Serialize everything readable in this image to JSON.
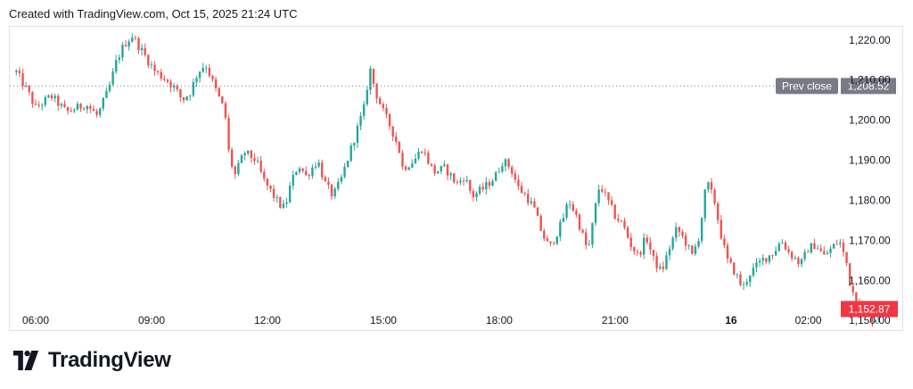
{
  "header": {
    "caption": "Created with TradingView.com, Oct 15, 2025 21:24 UTC"
  },
  "brand": {
    "name": "TradingView"
  },
  "colors": {
    "up": "#26a69a",
    "down": "#ef5350",
    "prev_close": "#787b86",
    "last_price": "#f23645"
  },
  "chart_data": {
    "type": "candlestick",
    "x_ticks": [
      {
        "label": "06:00",
        "hour": 6
      },
      {
        "label": "09:00",
        "hour": 9
      },
      {
        "label": "12:00",
        "hour": 12
      },
      {
        "label": "15:00",
        "hour": 15
      },
      {
        "label": "18:00",
        "hour": 18
      },
      {
        "label": "21:00",
        "hour": 21
      },
      {
        "label": "16",
        "hour": 24,
        "bold": true
      },
      {
        "label": "02:00",
        "hour": 26
      }
    ],
    "x_range_hours": [
      5.5,
      27.0
    ],
    "y_ticks": [
      {
        "label": "1,150.00",
        "value": 1150
      },
      {
        "label": "1,160.00",
        "value": 1160
      },
      {
        "label": "1,170.00",
        "value": 1170
      },
      {
        "label": "1,180.00",
        "value": 1180
      },
      {
        "label": "1,190.00",
        "value": 1190
      },
      {
        "label": "1,200.00",
        "value": 1200
      },
      {
        "label": "1,210.00",
        "value": 1210
      },
      {
        "label": "1,220.00",
        "value": 1220
      }
    ],
    "ylim": [
      1147.6,
      1223.3
    ],
    "prev_close": {
      "label": "Prev close",
      "value_label": "1,208.52",
      "value": 1208.52
    },
    "last_price": {
      "label": "1,152.87",
      "value": 1152.87
    },
    "path_points": [
      [
        5.5,
        1212
      ],
      [
        5.8,
        1207
      ],
      [
        6.0,
        1203
      ],
      [
        6.4,
        1206
      ],
      [
        6.8,
        1202
      ],
      [
        7.3,
        1204
      ],
      [
        7.6,
        1201
      ],
      [
        7.9,
        1208
      ],
      [
        8.1,
        1215
      ],
      [
        8.3,
        1219
      ],
      [
        8.5,
        1221
      ],
      [
        8.7,
        1218
      ],
      [
        8.9,
        1215
      ],
      [
        9.1,
        1212
      ],
      [
        9.4,
        1210
      ],
      [
        9.6,
        1208
      ],
      [
        9.8,
        1205
      ],
      [
        10.0,
        1207
      ],
      [
        10.2,
        1212
      ],
      [
        10.4,
        1214
      ],
      [
        10.6,
        1209
      ],
      [
        10.9,
        1202
      ],
      [
        11.0,
        1192
      ],
      [
        11.15,
        1186
      ],
      [
        11.4,
        1192
      ],
      [
        11.7,
        1190
      ],
      [
        11.9,
        1185
      ],
      [
        12.1,
        1182
      ],
      [
        12.3,
        1179
      ],
      [
        12.45,
        1178
      ],
      [
        12.6,
        1184
      ],
      [
        12.8,
        1189
      ],
      [
        13.0,
        1186
      ],
      [
        13.3,
        1190
      ],
      [
        13.5,
        1184
      ],
      [
        13.7,
        1181
      ],
      [
        13.9,
        1185
      ],
      [
        14.1,
        1191
      ],
      [
        14.3,
        1197
      ],
      [
        14.5,
        1203
      ],
      [
        14.65,
        1213
      ],
      [
        14.8,
        1207
      ],
      [
        15.0,
        1202
      ],
      [
        15.2,
        1198
      ],
      [
        15.4,
        1193
      ],
      [
        15.5,
        1188
      ],
      [
        15.8,
        1190
      ],
      [
        16.0,
        1193
      ],
      [
        16.3,
        1187
      ],
      [
        16.6,
        1188
      ],
      [
        16.9,
        1184
      ],
      [
        17.1,
        1186
      ],
      [
        17.3,
        1181
      ],
      [
        17.6,
        1183
      ],
      [
        17.9,
        1186
      ],
      [
        18.1,
        1190
      ],
      [
        18.3,
        1188
      ],
      [
        18.5,
        1183
      ],
      [
        18.7,
        1181
      ],
      [
        18.9,
        1178
      ],
      [
        19.1,
        1172
      ],
      [
        19.3,
        1168
      ],
      [
        19.6,
        1174
      ],
      [
        19.8,
        1180
      ],
      [
        20.0,
        1176
      ],
      [
        20.2,
        1170
      ],
      [
        20.3,
        1167
      ],
      [
        20.5,
        1179
      ],
      [
        20.6,
        1184
      ],
      [
        20.8,
        1180
      ],
      [
        21.0,
        1176
      ],
      [
        21.2,
        1174
      ],
      [
        21.4,
        1169
      ],
      [
        21.6,
        1166
      ],
      [
        21.8,
        1171
      ],
      [
        22.0,
        1165
      ],
      [
        22.2,
        1162
      ],
      [
        22.4,
        1168
      ],
      [
        22.6,
        1173
      ],
      [
        22.8,
        1170
      ],
      [
        23.0,
        1166
      ],
      [
        23.2,
        1172
      ],
      [
        23.3,
        1181
      ],
      [
        23.4,
        1184
      ],
      [
        23.6,
        1179
      ],
      [
        23.7,
        1173
      ],
      [
        23.9,
        1165
      ],
      [
        24.1,
        1162
      ],
      [
        24.3,
        1158
      ],
      [
        24.5,
        1162
      ],
      [
        24.8,
        1165
      ],
      [
        25.1,
        1167
      ],
      [
        25.3,
        1170
      ],
      [
        25.5,
        1167
      ],
      [
        25.8,
        1164
      ],
      [
        26.0,
        1168
      ],
      [
        26.2,
        1169
      ],
      [
        26.4,
        1166
      ],
      [
        26.6,
        1168
      ],
      [
        26.8,
        1170
      ],
      [
        27.0,
        1164
      ],
      [
        27.1,
        1158
      ],
      [
        27.3,
        1155
      ],
      [
        27.5,
        1152
      ],
      [
        27.7,
        1150
      ],
      [
        27.9,
        1152.87
      ]
    ]
  }
}
